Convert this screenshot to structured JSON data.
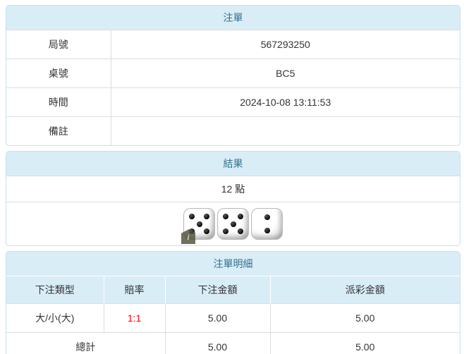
{
  "theme": {
    "header_bg": "#d9edf7",
    "header_text": "#31708f",
    "outer_border": "#c6e1ec",
    "inner_border": "#dcdcdc",
    "odds_color": "#ff0000",
    "text_color": "#333333"
  },
  "bet_slip": {
    "title": "注單",
    "rows": [
      {
        "label": "局號",
        "value": "567293250"
      },
      {
        "label": "桌號",
        "value": "BC5"
      },
      {
        "label": "時間",
        "value": "2024-10-08 13:11:53"
      },
      {
        "label": "備註",
        "value": ""
      }
    ]
  },
  "result": {
    "title": "結果",
    "points": "12 點",
    "dice": [
      5,
      5,
      2
    ],
    "info_badge": "i"
  },
  "details": {
    "title": "注單明細",
    "columns": [
      "下注類型",
      "賠率",
      "下注金額",
      "派彩金額"
    ],
    "rows": [
      {
        "bet_type": "大/小(大)",
        "odds": "1:1",
        "bet_amount": "5.00",
        "payout": "5.00"
      }
    ],
    "total": {
      "label": "總計",
      "bet_amount": "5.00",
      "payout": "5.00"
    }
  }
}
